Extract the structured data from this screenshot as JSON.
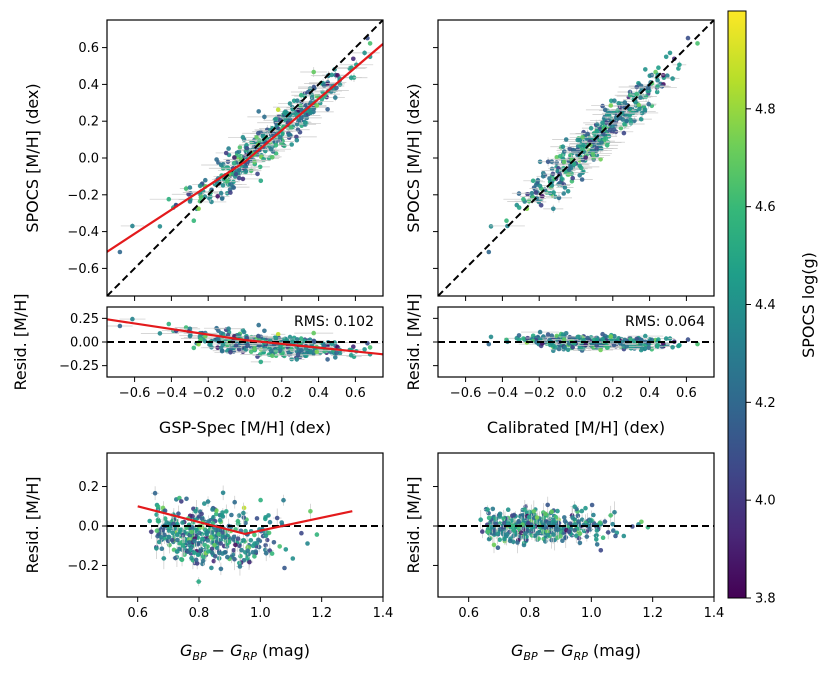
{
  "chart_data": [
    {
      "type": "scatter",
      "panel": "top-left",
      "ylabel": "SPOCS [M/H] (dex)",
      "xlim": [
        -0.75,
        0.75
      ],
      "ylim": [
        -0.75,
        0.75
      ],
      "yticks": [
        -0.6,
        -0.4,
        -0.2,
        0.0,
        0.2,
        0.4,
        0.6
      ],
      "ytick_labels": [
        "−0.6",
        "−0.4",
        "−0.2",
        "0.0",
        "0.2",
        "0.4",
        "0.6"
      ],
      "lines": [
        {
          "name": "one-to-one",
          "style": "dashed",
          "color": "#000000",
          "x": [
            -0.75,
            0.75
          ],
          "y": [
            -0.75,
            0.75
          ]
        },
        {
          "name": "fit",
          "style": "solid",
          "color": "#e31a1c",
          "x": [
            -0.75,
            0.0,
            0.75
          ],
          "y": [
            -0.51,
            -0.02,
            0.62
          ]
        }
      ],
      "point_model": "y = fit(x) + scatter",
      "n_points": 420,
      "color_by": "SPOCS log(g)"
    },
    {
      "type": "scatter",
      "panel": "top-right",
      "ylabel": "SPOCS [M/H] (dex)",
      "xlim": [
        -0.75,
        0.75
      ],
      "ylim": [
        -0.75,
        0.75
      ],
      "lines": [
        {
          "name": "one-to-one",
          "style": "dashed",
          "color": "#000000",
          "x": [
            -0.75,
            0.75
          ],
          "y": [
            -0.75,
            0.75
          ]
        }
      ],
      "point_model": "y = x + scatter",
      "n_points": 420,
      "color_by": "SPOCS log(g)"
    },
    {
      "type": "scatter",
      "panel": "middle-left",
      "ylabel": "Resid. [M/H]",
      "xlabel": "GSP-Spec [M/H] (dex)",
      "annotation": "RMS: 0.102",
      "xlim": [
        -0.75,
        0.75
      ],
      "ylim": [
        -0.37,
        0.37
      ],
      "xticks": [
        -0.6,
        -0.4,
        -0.2,
        0.0,
        0.2,
        0.4,
        0.6
      ],
      "xtick_labels": [
        "−0.6",
        "−0.4",
        "−0.2",
        "0.0",
        "0.2",
        "0.4",
        "0.6"
      ],
      "yticks": [
        0.25,
        0.0,
        -0.25
      ],
      "ytick_labels": [
        "0.25",
        "0.00",
        "−0.25"
      ],
      "lines": [
        {
          "name": "zero",
          "style": "dashed",
          "color": "#000000",
          "x": [
            -0.75,
            0.75
          ],
          "y": [
            0,
            0
          ]
        },
        {
          "name": "fit-residual",
          "style": "solid",
          "color": "#e31a1c",
          "x": [
            -0.75,
            0.0,
            0.75
          ],
          "y": [
            0.24,
            0.02,
            -0.13
          ]
        }
      ],
      "n_points": 420
    },
    {
      "type": "scatter",
      "panel": "middle-right",
      "ylabel": "Resid. [M/H]",
      "xlabel": "Calibrated [M/H] (dex)",
      "annotation": "RMS: 0.064",
      "xlim": [
        -0.75,
        0.75
      ],
      "ylim": [
        -0.37,
        0.37
      ],
      "lines": [
        {
          "name": "zero",
          "style": "dashed",
          "color": "#000000",
          "x": [
            -0.75,
            0.75
          ],
          "y": [
            0,
            0
          ]
        }
      ],
      "n_points": 420
    },
    {
      "type": "scatter",
      "panel": "bottom-left",
      "ylabel": "Resid. [M/H]",
      "xlabel_main": "G",
      "xlabel_sub1": "BP",
      "xlabel_mid": " − G",
      "xlabel_sub2": "RP",
      "xlabel_tail": " (mag)",
      "xlim": [
        0.5,
        1.4
      ],
      "ylim": [
        -0.36,
        0.37
      ],
      "xticks": [
        0.6,
        0.8,
        1.0,
        1.2,
        1.4
      ],
      "xtick_labels": [
        "0.6",
        "0.8",
        "1.0",
        "1.2",
        "1.4"
      ],
      "yticks": [
        0.2,
        0.0,
        -0.2
      ],
      "ytick_labels": [
        "0.2",
        "0.0",
        "−0.2"
      ],
      "lines": [
        {
          "name": "zero",
          "style": "dashed",
          "color": "#000000",
          "x": [
            0.5,
            1.4
          ],
          "y": [
            0,
            0
          ]
        },
        {
          "name": "color-trend",
          "style": "solid",
          "color": "#e31a1c",
          "x": [
            0.6,
            0.95,
            1.3
          ],
          "y": [
            0.1,
            -0.04,
            0.075
          ]
        }
      ],
      "n_points": 420
    },
    {
      "type": "scatter",
      "panel": "bottom-right",
      "ylabel": "Resid. [M/H]",
      "xlabel_main": "G",
      "xlabel_sub1": "BP",
      "xlabel_mid": " − G",
      "xlabel_sub2": "RP",
      "xlabel_tail": " (mag)",
      "xlim": [
        0.5,
        1.4
      ],
      "ylim": [
        -0.36,
        0.37
      ],
      "lines": [
        {
          "name": "zero",
          "style": "dashed",
          "color": "#000000",
          "x": [
            0.5,
            1.4
          ],
          "y": [
            0,
            0
          ]
        }
      ],
      "n_points": 420
    }
  ],
  "colorbar": {
    "label": "SPOCS log(g)",
    "range": [
      3.8,
      5.0
    ],
    "ticks": [
      3.8,
      4.0,
      4.2,
      4.4,
      4.6,
      4.8
    ],
    "tick_labels": [
      "3.8",
      "4.0",
      "4.2",
      "4.4",
      "4.6",
      "4.8"
    ],
    "colormap": "viridis",
    "colors": [
      "#440154",
      "#482878",
      "#3e4989",
      "#31688e",
      "#26828e",
      "#1f9e89",
      "#35b779",
      "#6ece58",
      "#b5de2b",
      "#fde725"
    ]
  }
}
